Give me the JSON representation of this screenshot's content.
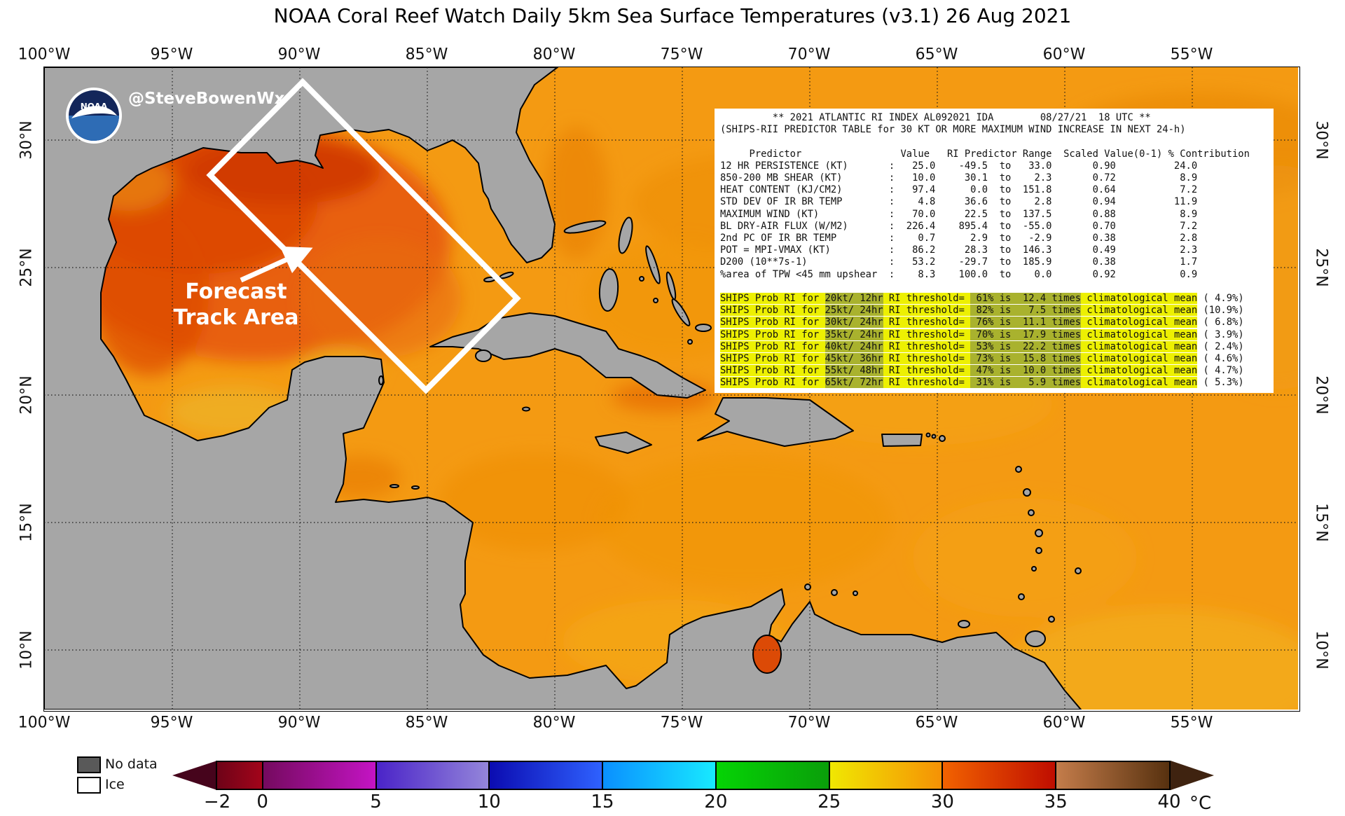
{
  "title": "NOAA Coral Reef Watch Daily 5km Sea Surface Temperatures  (v3.1)   26 Aug 2021",
  "map": {
    "credit_handle": "@SteveBowenWx",
    "logo_label": "NOAA",
    "annotation": {
      "line1": "Forecast",
      "line2": "Track Area"
    },
    "axis": {
      "top": [
        "100°W",
        "95°W",
        "90°W",
        "85°W",
        "80°W",
        "75°W",
        "70°W",
        "65°W",
        "60°W",
        "55°W"
      ],
      "bottom": [
        "100°W",
        "95°W",
        "90°W",
        "85°W",
        "80°W",
        "75°W",
        "70°W",
        "65°W",
        "60°W",
        "55°W"
      ],
      "left": [
        "30°N",
        "25°N",
        "20°N",
        "15°N",
        "10°N"
      ],
      "right": [
        "30°N",
        "25°N",
        "20°N",
        "15°N",
        "10°N"
      ]
    }
  },
  "table": {
    "lines": [
      "         ** 2021 ATLANTIC RI INDEX AL092021 IDA        08/27/21  18 UTC **",
      "(SHIPS-RII PREDICTOR TABLE for 30 KT OR MORE MAXIMUM WIND INCREASE IN NEXT 24-h)",
      "",
      "     Predictor                 Value   RI Predictor Range  Scaled Value(0-1) % Contribution",
      "12 HR PERSISTENCE (KT)       :   25.0    -49.5  to   33.0       0.90          24.0",
      "850-200 MB SHEAR (KT)        :   10.0     30.1  to    2.3       0.72           8.9",
      "HEAT CONTENT (KJ/CM2)        :   97.4      0.0  to  151.8       0.64           7.2",
      "STD DEV OF IR BR TEMP        :    4.8     36.6  to    2.8       0.94          11.9",
      "MAXIMUM WIND (KT)            :   70.0     22.5  to  137.5       0.88           8.9",
      "BL DRY-AIR FLUX (W/M2)       :  226.4    895.4  to  -55.0       0.70           7.2",
      "2nd PC OF IR BR TEMP         :    0.7      2.9  to   -2.9       0.38           2.8",
      "POT = MPI-VMAX (KT)          :   86.2     28.3  to  146.3       0.49           2.3",
      "D200 (10**7s-1)              :   53.2    -29.7  to  185.9       0.38           1.7",
      "%area of TPW <45 mm upshear  :    8.3    100.0  to    0.0       0.92           0.9",
      ""
    ],
    "ships_rows": [
      [
        [
          "SHIPS Prob RI for ",
          "y"
        ],
        [
          "20kt/ 12hr",
          "o"
        ],
        [
          " RI threshold= ",
          "y"
        ],
        [
          " 61% is  12.4 times",
          "o"
        ],
        [
          " climatological mean",
          "y"
        ],
        [
          " ( 4.9%)",
          "w"
        ]
      ],
      [
        [
          "SHIPS Prob RI for ",
          "y"
        ],
        [
          "25kt/ 24hr",
          "o"
        ],
        [
          " RI threshold= ",
          "y"
        ],
        [
          " 82% is   7.5 times",
          "o"
        ],
        [
          " climatological mean",
          "y"
        ],
        [
          " (10.9%)",
          "w"
        ]
      ],
      [
        [
          "SHIPS Prob RI for ",
          "y"
        ],
        [
          "30kt/ 24hr",
          "o"
        ],
        [
          " RI threshold= ",
          "y"
        ],
        [
          " 76% is  11.1 times",
          "o"
        ],
        [
          " climatological mean",
          "y"
        ],
        [
          " ( 6.8%)",
          "w"
        ]
      ],
      [
        [
          "SHIPS Prob RI for ",
          "y"
        ],
        [
          "35kt/ 24hr",
          "o"
        ],
        [
          " RI threshold= ",
          "y"
        ],
        [
          " 70% is  17.9 times",
          "o"
        ],
        [
          " climatological mean",
          "y"
        ],
        [
          " ( 3.9%)",
          "w"
        ]
      ],
      [
        [
          "SHIPS Prob RI for ",
          "y"
        ],
        [
          "40kt/ 24hr",
          "o"
        ],
        [
          " RI threshold= ",
          "y"
        ],
        [
          " 53% is  22.2 times",
          "o"
        ],
        [
          " climatological mean",
          "y"
        ],
        [
          " ( 2.4%)",
          "w"
        ]
      ],
      [
        [
          "SHIPS Prob RI for ",
          "y"
        ],
        [
          "45kt/ 36hr",
          "o"
        ],
        [
          " RI threshold= ",
          "y"
        ],
        [
          " 73% is  15.8 times",
          "o"
        ],
        [
          " climatological mean",
          "y"
        ],
        [
          " ( 4.6%)",
          "w"
        ]
      ],
      [
        [
          "SHIPS Prob RI for ",
          "y"
        ],
        [
          "55kt/ 48hr",
          "o"
        ],
        [
          " RI threshold= ",
          "y"
        ],
        [
          " 47% is  10.0 times",
          "o"
        ],
        [
          " climatological mean",
          "y"
        ],
        [
          " ( 4.7%)",
          "w"
        ]
      ],
      [
        [
          "SHIPS Prob RI for ",
          "y"
        ],
        [
          "65kt/ 72hr",
          "o"
        ],
        [
          " RI threshold= ",
          "y"
        ],
        [
          " 31% is   5.9 times",
          "o"
        ],
        [
          " climatological mean",
          "y"
        ],
        [
          " ( 5.3%)",
          "w"
        ]
      ]
    ]
  },
  "legend": {
    "no_data": "No data",
    "ice": "Ice"
  },
  "colorbar": {
    "unit": "°C",
    "ticks": [
      {
        "v": -2,
        "label": "−2"
      },
      {
        "v": 0,
        "label": "0"
      },
      {
        "v": 5,
        "label": "5"
      },
      {
        "v": 10,
        "label": "10"
      },
      {
        "v": 15,
        "label": "15"
      },
      {
        "v": 20,
        "label": "20"
      },
      {
        "v": 25,
        "label": "25"
      },
      {
        "v": 30,
        "label": "30"
      },
      {
        "v": 35,
        "label": "35"
      },
      {
        "v": 40,
        "label": "40"
      }
    ],
    "segments": [
      {
        "from": -2,
        "to": 0,
        "c1": "#6e0318",
        "c2": "#a3041a"
      },
      {
        "from": 0,
        "to": 5,
        "c1": "#740a5e",
        "c2": "#c414c4"
      },
      {
        "from": 5,
        "to": 10,
        "c1": "#4a23c8",
        "c2": "#9486da"
      },
      {
        "from": 10,
        "to": 15,
        "c1": "#0b0bb0",
        "c2": "#2f62ff"
      },
      {
        "from": 15,
        "to": 20,
        "c1": "#0a8fff",
        "c2": "#18eaff"
      },
      {
        "from": 20,
        "to": 25,
        "c1": "#05d405",
        "c2": "#0a9e0a"
      },
      {
        "from": 25,
        "to": 30,
        "c1": "#f0e802",
        "c2": "#f59105"
      },
      {
        "from": 30,
        "to": 35,
        "c1": "#f26300",
        "c2": "#bf0d00"
      },
      {
        "from": 35,
        "to": 40,
        "c1": "#c57d4b",
        "c2": "#57310f"
      }
    ],
    "left_arrow_color": "#46041c",
    "right_arrow_color": "#3f2310"
  },
  "colors": {
    "land": "#a6a6a6",
    "sea_base": "#f49a12",
    "highlight_yellow": "#edf002",
    "highlight_olive": "#a9b22e",
    "no_data_gray": "#595959",
    "track_box_white": "#ffffff"
  }
}
